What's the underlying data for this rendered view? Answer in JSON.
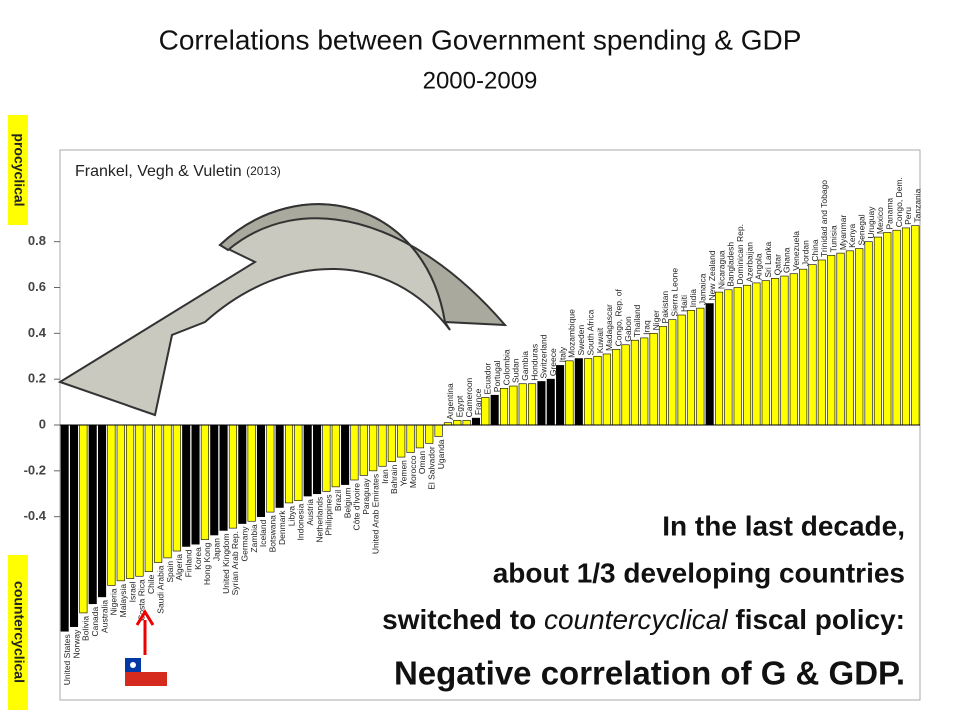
{
  "chart_data": {
    "type": "bar",
    "title": "Correlations between Government spending & GDP",
    "subtitle": "2000-2009",
    "source": "Frankel, Vegh & Vuletin",
    "source_year": "(2013)",
    "label_top": "procyclical",
    "label_bottom": "countercyclical",
    "annotation": [
      "In the last decade,",
      "about 1/3 developing countries",
      "switched to ",
      "countercyclical",
      " fiscal policy:",
      "Negative correlation of G & GDP."
    ],
    "categories": [
      "United States",
      "Norway",
      "Bolivia",
      "Canada",
      "Australia",
      "Nigeria",
      "Malaysia",
      "Israel",
      "Costa Rica",
      "Chile",
      "Saudi Arabia",
      "Spain",
      "Algeria",
      "Finland",
      "Korea",
      "Hong Kong",
      "Japan",
      "United Kingdom",
      "Syrian Arab Rep.",
      "Germany",
      "Zambia",
      "Iceland",
      "Botswana",
      "Denmark",
      "Libya",
      "Indonesia",
      "Austria",
      "Netherlands",
      "Philippines",
      "Brazil",
      "Belgium",
      "Côte d'Ivoire",
      "Paraguay",
      "United Arab Emirates",
      "Iran",
      "Bahrain",
      "Yemen",
      "Morocco",
      "Oman",
      "El Salvador",
      "Uganda",
      "Argentina",
      "Egypt",
      "Cameroon",
      "France",
      "Ecuador",
      "Portugal",
      "Colombia",
      "Sudan",
      "Gambia",
      "Honduras",
      "Switzerland",
      "Greece",
      "Italy",
      "Mozambique",
      "Sweden",
      "South Africa",
      "Kuwait",
      "Madagascar",
      "Congo, Rep. of",
      "Gabon",
      "Thailand",
      "Iraq",
      "Niger",
      "Pakistan",
      "Sierra Leone",
      "Haiti",
      "India",
      "Jamaica",
      "New Zealand",
      "Nicaragua",
      "Bangladesh",
      "Dominican Rep.",
      "Azerbaijan",
      "Angola",
      "Sri Lanka",
      "Qatar",
      "Ghana",
      "Venezuela",
      "Jordan",
      "China",
      "Trinidad and Tobago",
      "Tunisia",
      "Myanmar",
      "Kenya",
      "Senegal",
      "Uruguay",
      "Mexico",
      "Panama",
      "Congo, Dem.",
      "Peru",
      "Tanzania"
    ],
    "values": [
      -0.9,
      -0.88,
      -0.82,
      -0.78,
      -0.75,
      -0.7,
      -0.68,
      -0.67,
      -0.66,
      -0.64,
      -0.6,
      -0.58,
      -0.55,
      -0.53,
      -0.52,
      -0.5,
      -0.48,
      -0.46,
      -0.45,
      -0.43,
      -0.42,
      -0.4,
      -0.38,
      -0.36,
      -0.34,
      -0.33,
      -0.31,
      -0.3,
      -0.29,
      -0.27,
      -0.26,
      -0.24,
      -0.22,
      -0.2,
      -0.18,
      -0.16,
      -0.14,
      -0.12,
      -0.1,
      -0.08,
      -0.05,
      0.01,
      0.02,
      0.02,
      0.03,
      0.12,
      0.13,
      0.16,
      0.17,
      0.18,
      0.18,
      0.19,
      0.2,
      0.26,
      0.28,
      0.29,
      0.29,
      0.3,
      0.31,
      0.33,
      0.35,
      0.37,
      0.38,
      0.4,
      0.43,
      0.46,
      0.48,
      0.5,
      0.51,
      0.53,
      0.58,
      0.59,
      0.6,
      0.61,
      0.62,
      0.63,
      0.64,
      0.65,
      0.66,
      0.68,
      0.7,
      0.72,
      0.74,
      0.75,
      0.76,
      0.77,
      0.8,
      0.82,
      0.84,
      0.85,
      0.86,
      0.87
    ],
    "colors": [
      "#000000",
      "#000000",
      "#ffff00",
      "#000000",
      "#000000",
      "#ffff00",
      "#ffff00",
      "#ffff00",
      "#ffff00",
      "#ffff00",
      "#ffff00",
      "#ffff00",
      "#ffff00",
      "#000000",
      "#000000",
      "#ffff00",
      "#000000",
      "#000000",
      "#ffff00",
      "#000000",
      "#ffff00",
      "#000000",
      "#ffff00",
      "#000000",
      "#ffff00",
      "#ffff00",
      "#000000",
      "#000000",
      "#ffff00",
      "#ffff00",
      "#000000",
      "#ffff00",
      "#ffff00",
      "#ffff00",
      "#ffff00",
      "#ffff00",
      "#ffff00",
      "#ffff00",
      "#ffff00",
      "#ffff00",
      "#ffff00",
      "#ffff00",
      "#ffff00",
      "#ffff00",
      "#000000",
      "#ffff00",
      "#000000",
      "#ffff00",
      "#ffff00",
      "#ffff00",
      "#ffff00",
      "#000000",
      "#000000",
      "#000000",
      "#ffff00",
      "#000000",
      "#ffff00",
      "#ffff00",
      "#ffff00",
      "#ffff00",
      "#ffff00",
      "#ffff00",
      "#ffff00",
      "#ffff00",
      "#ffff00",
      "#ffff00",
      "#ffff00",
      "#ffff00",
      "#ffff00",
      "#000000",
      "#ffff00",
      "#ffff00",
      "#ffff00",
      "#ffff00",
      "#ffff00",
      "#ffff00",
      "#ffff00",
      "#ffff00",
      "#ffff00",
      "#ffff00",
      "#ffff00",
      "#ffff00",
      "#ffff00",
      "#ffff00",
      "#ffff00",
      "#ffff00",
      "#ffff00",
      "#ffff00",
      "#ffff00",
      "#ffff00",
      "#ffff00",
      "#ffff00"
    ],
    "ylim": [
      -1.2,
      1.2
    ],
    "yticks": [
      -0.4,
      -0.2,
      0,
      0.2,
      0.4,
      0.6,
      0.8
    ]
  }
}
